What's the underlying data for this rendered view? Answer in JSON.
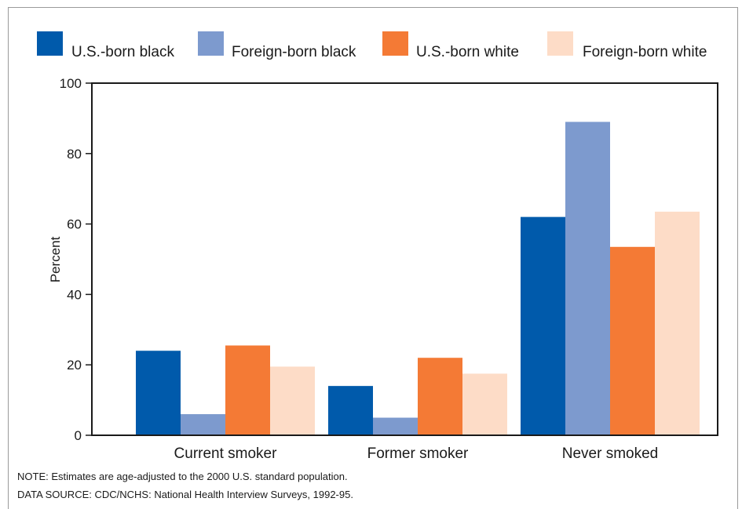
{
  "chart_data": {
    "type": "bar",
    "categories": [
      "Current smoker",
      "Former smoker",
      "Never smoked"
    ],
    "series": [
      {
        "name": "U.S.-born black",
        "color": "#005aab",
        "values": [
          24,
          14,
          62
        ]
      },
      {
        "name": "Foreign-born black",
        "color": "#7d9ace",
        "values": [
          6,
          5,
          89
        ]
      },
      {
        "name": "U.S.-born white",
        "color": "#f47a35",
        "values": [
          25.5,
          22,
          53.5
        ]
      },
      {
        "name": "Foreign-born white",
        "color": "#fddcc7",
        "values": [
          19.5,
          17.5,
          63.5
        ]
      }
    ],
    "ylabel": "Percent",
    "xlabel": "",
    "title": "",
    "ylim": [
      0,
      100
    ],
    "yticks": [
      0,
      20,
      40,
      60,
      80,
      100
    ],
    "grid": false,
    "legend_position": "top"
  },
  "notes": {
    "note": "NOTE: Estimates are age-adjusted to the 2000 U.S. standard population.",
    "source": "DATA SOURCE: CDC/NCHS: National Health Interview Surveys, 1992-95."
  }
}
